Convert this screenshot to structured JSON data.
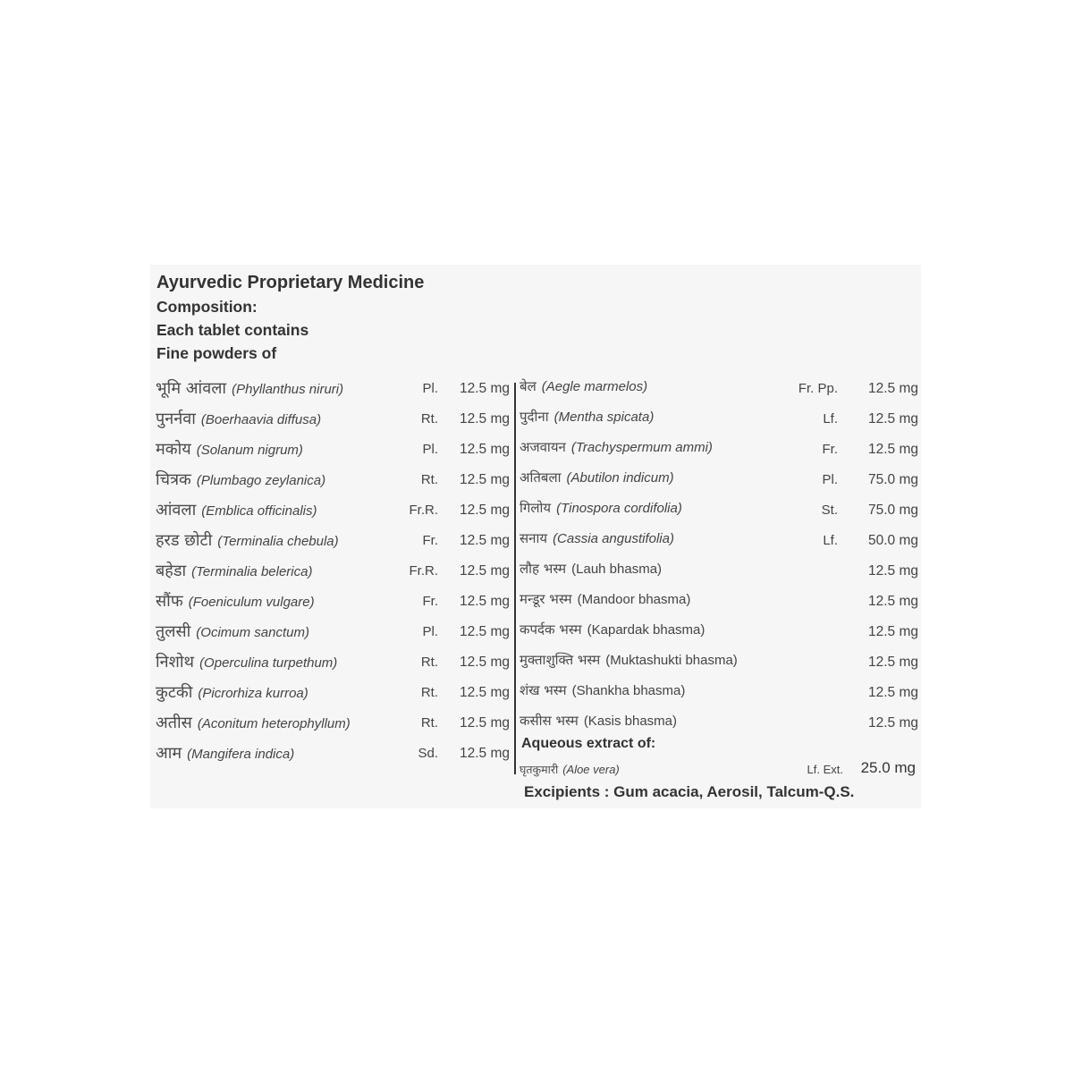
{
  "header": {
    "title": "Ayurvedic Proprietary Medicine",
    "composition": "Composition:",
    "each_tablet": "Each tablet contains",
    "fine_powders": "Fine powders of"
  },
  "left_items": [
    {
      "hindi": "भूमि आंवला",
      "latin": "(Phyllanthus niruri)",
      "part": "Pl.",
      "dose": "12.5 mg"
    },
    {
      "hindi": "पुनर्नवा",
      "latin": "(Boerhaavia diffusa)",
      "part": "Rt.",
      "dose": "12.5 mg"
    },
    {
      "hindi": "मकोय",
      "latin": "(Solanum nigrum)",
      "part": "Pl.",
      "dose": "12.5 mg"
    },
    {
      "hindi": "चित्रक",
      "latin": "(Plumbago zeylanica)",
      "part": "Rt.",
      "dose": "12.5 mg"
    },
    {
      "hindi": "आंवला",
      "latin": "(Emblica officinalis)",
      "part": "Fr.R.",
      "dose": "12.5 mg"
    },
    {
      "hindi": "हरड छोटी",
      "latin": "(Terminalia chebula)",
      "part": "Fr.",
      "dose": "12.5 mg"
    },
    {
      "hindi": "बहेडा",
      "latin": "(Terminalia belerica)",
      "part": "Fr.R.",
      "dose": "12.5 mg"
    },
    {
      "hindi": "सौंफ",
      "latin": "(Foeniculum vulgare)",
      "part": "Fr.",
      "dose": "12.5 mg"
    },
    {
      "hindi": "तुलसी",
      "latin": "(Ocimum sanctum)",
      "part": "Pl.",
      "dose": "12.5 mg"
    },
    {
      "hindi": "निशोथ",
      "latin": "(Operculina turpethum)",
      "part": "Rt.",
      "dose": "12.5 mg"
    },
    {
      "hindi": "कुटकी",
      "latin": "(Picrorhiza kurroa)",
      "part": "Rt.",
      "dose": "12.5 mg"
    },
    {
      "hindi": "अतीस",
      "latin": "(Aconitum heterophyllum)",
      "part": "Rt.",
      "dose": "12.5 mg"
    },
    {
      "hindi": "आम",
      "latin": "(Mangifera indica)",
      "part": "Sd.",
      "dose": "12.5 mg"
    }
  ],
  "right_items": [
    {
      "hindi": "बेल",
      "latin": "(Aegle marmelos)",
      "part": "Fr. Pp.",
      "dose": "12.5 mg"
    },
    {
      "hindi": "पुदीना",
      "latin": "(Mentha spicata)",
      "part": "Lf.",
      "dose": "12.5 mg"
    },
    {
      "hindi": "अजवायन",
      "latin": "(Trachyspermum ammi)",
      "part": "Fr.",
      "dose": "12.5 mg"
    },
    {
      "hindi": "अतिबला",
      "latin": "(Abutilon indicum)",
      "part": "Pl.",
      "dose": "75.0 mg"
    },
    {
      "hindi": "गिलोय",
      "latin": "(Tinospora cordifolia)",
      "part": "St.",
      "dose": "75.0 mg"
    },
    {
      "hindi": "सनाय",
      "latin": "(Cassia angustifolia)",
      "part": "Lf.",
      "dose": "50.0 mg"
    }
  ],
  "bhasma_items": [
    {
      "hindi": "लौह भस्म",
      "latin": "(Lauh bhasma)",
      "dose": "12.5 mg"
    },
    {
      "hindi": "मन्डूर भस्म",
      "latin": "(Mandoor bhasma)",
      "dose": "12.5 mg"
    },
    {
      "hindi": "कपर्दक भस्म",
      "latin": "(Kapardak bhasma)",
      "dose": "12.5 mg"
    },
    {
      "hindi": "मुक्ताशुक्ति भस्म",
      "latin": "(Muktashukti bhasma)",
      "dose": "12.5 mg"
    },
    {
      "hindi": "शंख भस्म",
      "latin": "(Shankha bhasma)",
      "dose": "12.5 mg"
    },
    {
      "hindi": "कसीस भस्म",
      "latin": "(Kasis bhasma)",
      "dose": "12.5 mg"
    }
  ],
  "aqueous": {
    "label": "Aqueous extract of:",
    "hindi": "घृतकुमारी",
    "latin": "(Aloe vera)",
    "part": "Lf. Ext.",
    "dose": "25.0 mg"
  },
  "excipients": "Excipients : Gum acacia, Aerosil, Talcum-Q.S."
}
